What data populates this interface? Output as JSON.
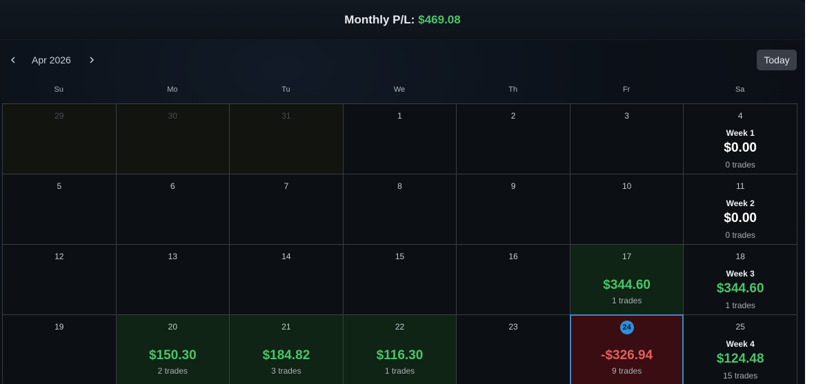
{
  "header": {
    "label": "Monthly P/L:",
    "value": "$469.08"
  },
  "nav": {
    "month": "Apr 2026",
    "today_label": "Today"
  },
  "weekdays": [
    "Su",
    "Mo",
    "Tu",
    "We",
    "Th",
    "Fr",
    "Sa"
  ],
  "colors": {
    "positive": "#4cc36a",
    "negative": "#e0605f",
    "accent": "#2d8fd6"
  },
  "weeks": [
    {
      "days": [
        {
          "day": "29",
          "outside": true
        },
        {
          "day": "30",
          "outside": true
        },
        {
          "day": "31",
          "outside": true
        },
        {
          "day": "1"
        },
        {
          "day": "2"
        },
        {
          "day": "3"
        }
      ],
      "summary": {
        "day": "4",
        "label": "Week 1",
        "pl": "$0.00",
        "trades": "0 trades",
        "tone": "neutral"
      }
    },
    {
      "days": [
        {
          "day": "5"
        },
        {
          "day": "6"
        },
        {
          "day": "7"
        },
        {
          "day": "8"
        },
        {
          "day": "9"
        },
        {
          "day": "10"
        }
      ],
      "summary": {
        "day": "11",
        "label": "Week 2",
        "pl": "$0.00",
        "trades": "0 trades",
        "tone": "neutral"
      }
    },
    {
      "days": [
        {
          "day": "12"
        },
        {
          "day": "13"
        },
        {
          "day": "14"
        },
        {
          "day": "15"
        },
        {
          "day": "16"
        },
        {
          "day": "17",
          "pl": "$344.60",
          "trades": "1 trades",
          "tone": "pos"
        }
      ],
      "summary": {
        "day": "18",
        "label": "Week 3",
        "pl": "$344.60",
        "trades": "1 trades",
        "tone": "pos"
      }
    },
    {
      "days": [
        {
          "day": "19"
        },
        {
          "day": "20",
          "pl": "$150.30",
          "trades": "2 trades",
          "tone": "pos"
        },
        {
          "day": "21",
          "pl": "$184.82",
          "trades": "3 trades",
          "tone": "pos"
        },
        {
          "day": "22",
          "pl": "$116.30",
          "trades": "1 trades",
          "tone": "pos"
        },
        {
          "day": "23"
        },
        {
          "day": "24",
          "pl": "-$326.94",
          "trades": "9 trades",
          "tone": "neg",
          "today": true
        }
      ],
      "summary": {
        "day": "25",
        "label": "Week 4",
        "pl": "$124.48",
        "trades": "15 trades",
        "tone": "pos"
      }
    }
  ]
}
